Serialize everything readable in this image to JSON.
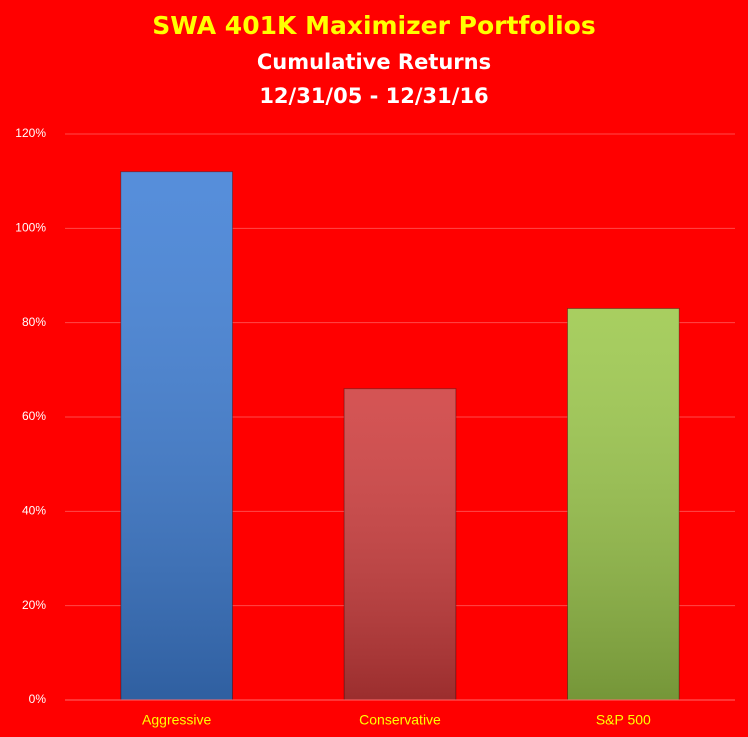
{
  "chart_data": {
    "type": "bar",
    "title": "SWA 401K Maximizer Portfolios",
    "subtitle": [
      "Cumulative Returns",
      "12/31/05 - 12/31/16"
    ],
    "categories": [
      "Aggressive",
      "Conservative",
      "S&P 500"
    ],
    "values": [
      112,
      66,
      83
    ],
    "colors": [
      "#3f7fd6",
      "#cf3d3d",
      "#9cc84b"
    ],
    "ylim": [
      0,
      120
    ],
    "yticks": [
      {
        "value": 0,
        "label": "0%"
      },
      {
        "value": 20,
        "label": "20%"
      },
      {
        "value": 40,
        "label": "40%"
      },
      {
        "value": 60,
        "label": "60%"
      },
      {
        "value": 80,
        "label": "80%"
      },
      {
        "value": 100,
        "label": "100%"
      },
      {
        "value": 120,
        "label": "120%"
      }
    ],
    "grid": true
  }
}
